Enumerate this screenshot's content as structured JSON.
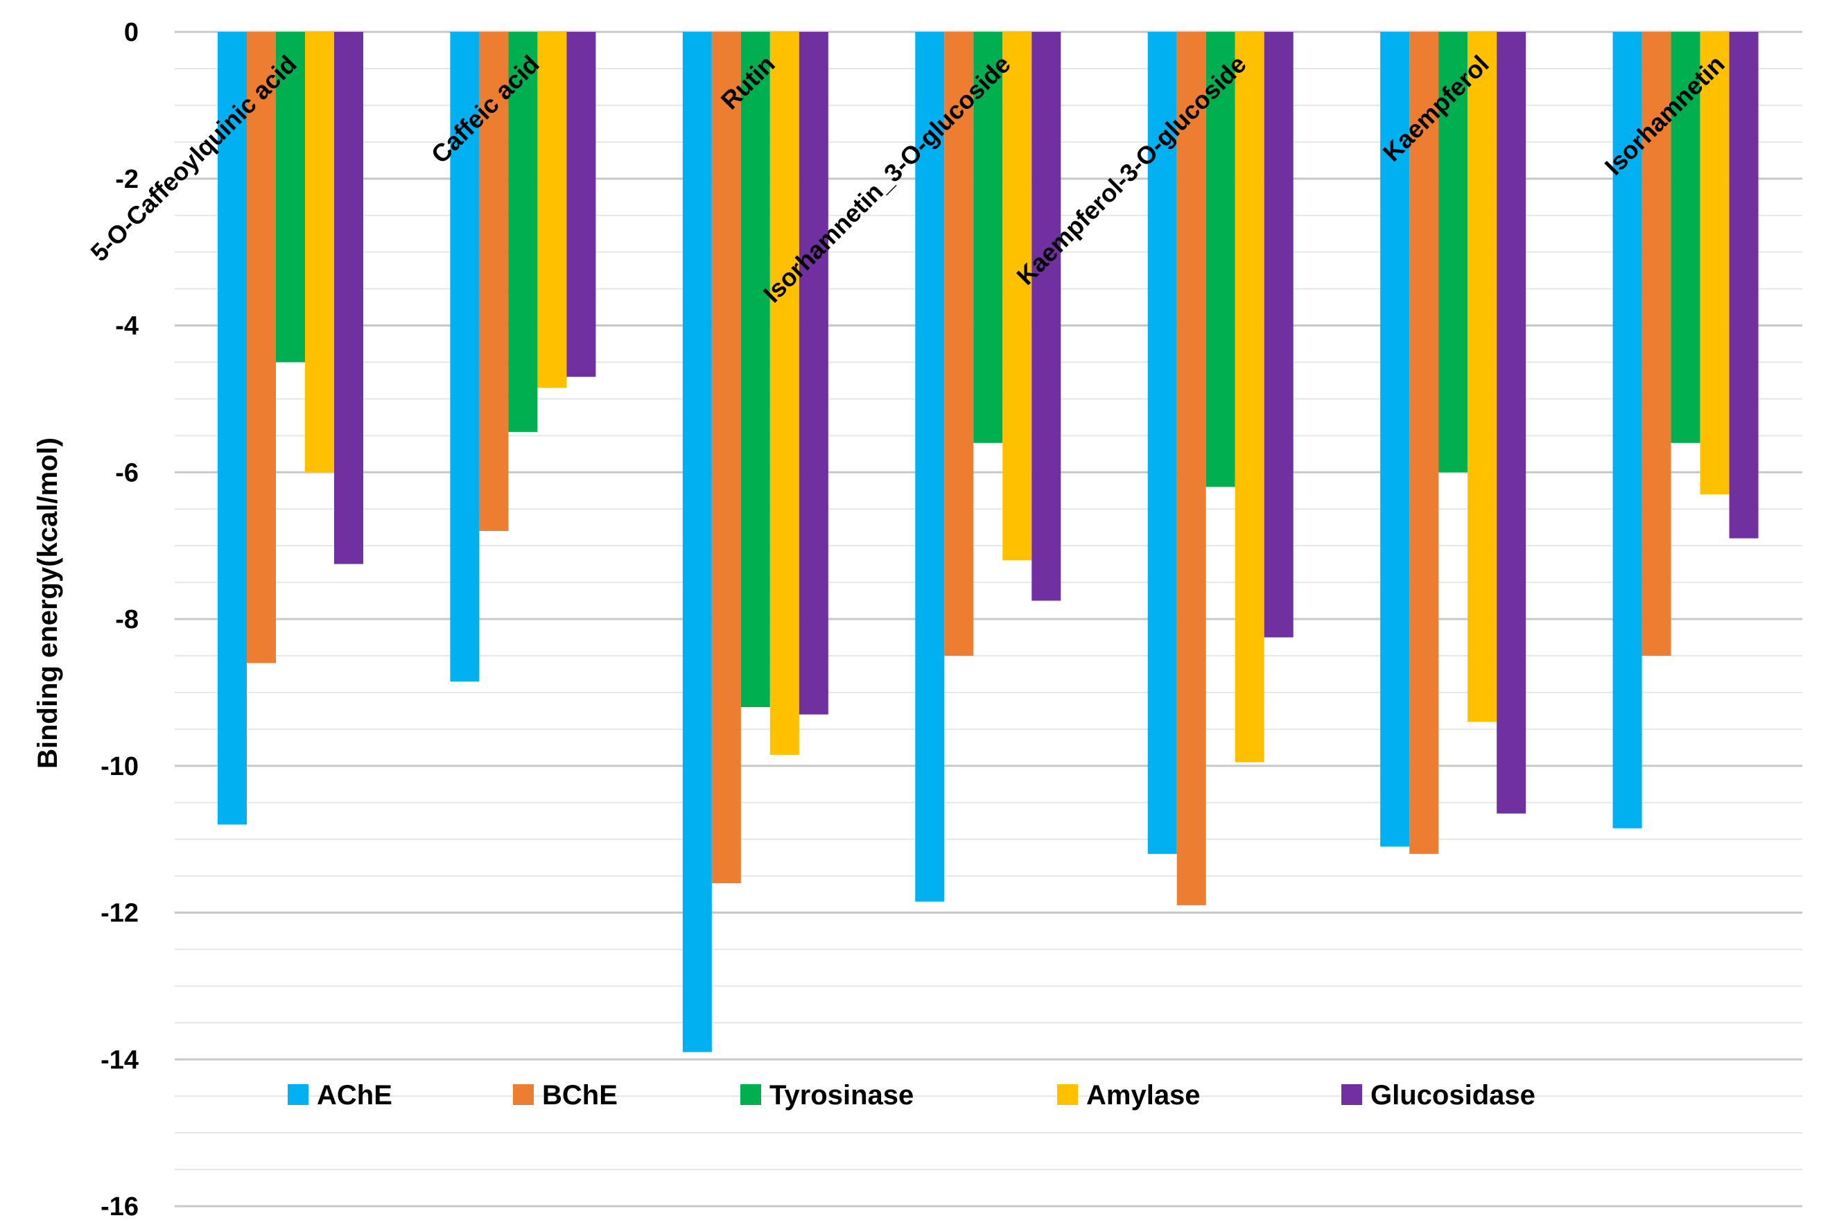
{
  "chart_data": {
    "type": "bar",
    "title": "",
    "xlabel": "",
    "ylabel": "Binding energy(kcal/mol)",
    "ylim": [
      -16,
      0
    ],
    "y_major_ticks": [
      0,
      -2,
      -4,
      -6,
      -8,
      -10,
      -12,
      -14,
      -16
    ],
    "y_tick_labels": [
      "0",
      "-2",
      "-4",
      "-6",
      "-8",
      "-10",
      "-12",
      "-14",
      "-16"
    ],
    "grid": true,
    "legend_position": "bottom-inside",
    "categories": [
      "5-O-Caffeoylquinic acid",
      "Caffeic acid",
      "Rutin",
      "Isorhamnetin_3-O-glucoside",
      "Kaempferol-3-O-glucoside",
      "Kaempferol",
      "Isorhamnetin"
    ],
    "series": [
      {
        "name": "AChE",
        "color": "#00b0f0",
        "values": [
          -10.8,
          -8.85,
          -13.9,
          -11.85,
          -11.2,
          -11.1,
          -10.85
        ]
      },
      {
        "name": "BChE",
        "color": "#ed7d31",
        "values": [
          -8.6,
          -6.8,
          -11.6,
          -8.5,
          -11.9,
          -11.2,
          -8.5
        ]
      },
      {
        "name": "Tyrosinase",
        "color": "#00b050",
        "values": [
          -4.5,
          -5.45,
          -9.2,
          -5.6,
          -6.2,
          -6.0,
          -5.6
        ]
      },
      {
        "name": "Amylase",
        "color": "#ffc000",
        "values": [
          -6.0,
          -4.85,
          -9.85,
          -7.2,
          -9.95,
          -9.4,
          -6.3
        ]
      },
      {
        "name": "Glucosidase",
        "color": "#7030a0",
        "values": [
          -7.25,
          -4.7,
          -9.3,
          -7.75,
          -8.25,
          -10.65,
          -6.9
        ]
      }
    ]
  }
}
